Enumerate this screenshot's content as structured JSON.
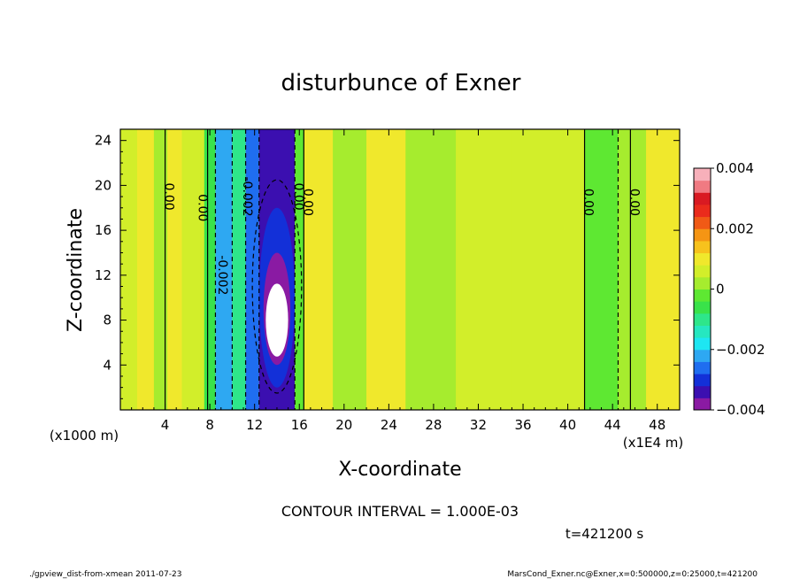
{
  "chart_data": {
    "type": "heatmap",
    "title": "disturbunce of Exner",
    "xlabel": "X-coordinate",
    "ylabel": "Z-coordinate",
    "x_unit_left": "(x1000 m)",
    "x_unit_right": "(x1E4 m)",
    "xlim": [
      0,
      50
    ],
    "ylim": [
      0,
      25
    ],
    "x_ticks": [
      4,
      8,
      12,
      16,
      20,
      24,
      28,
      32,
      36,
      40,
      44,
      48
    ],
    "x_tick_labels": [
      "4",
      "8",
      "12",
      "16",
      "20",
      "24",
      "28",
      "32",
      "36",
      "40",
      "44",
      "48"
    ],
    "y_ticks": [
      4,
      8,
      12,
      16,
      20,
      24
    ],
    "y_tick_labels": [
      "4",
      "8",
      "12",
      "16",
      "20",
      "24"
    ],
    "colorbar": {
      "min": -0.004,
      "max": 0.004,
      "labels": [
        "0.004",
        "0.002",
        "0",
        "−0.002",
        "−0.004"
      ],
      "label_values": [
        0.004,
        0.002,
        0,
        -0.002,
        -0.004
      ],
      "colors": [
        "#8a1aa3",
        "#3b0fb0",
        "#1330d8",
        "#1f6ef0",
        "#2ea8f2",
        "#1ee6f2",
        "#26e7c0",
        "#2ee68a",
        "#39e24a",
        "#5ee832",
        "#a6ec2e",
        "#d2ee2a",
        "#f0e82c",
        "#f7c21d",
        "#f59514",
        "#f05a16",
        "#ea2b1c",
        "#d91a22",
        "#f07a82",
        "#f7b0ba"
      ]
    },
    "series": [
      {
        "x0": 0,
        "x1": 1.5,
        "value": 0.0004
      },
      {
        "x0": 1.5,
        "x1": 3,
        "value": 0.0011
      },
      {
        "x0": 3,
        "x1": 4.2,
        "value": 0.0003
      },
      {
        "x0": 4.2,
        "x1": 5.5,
        "value": 0.0012
      },
      {
        "x0": 5.5,
        "x1": 7.5,
        "value": 0.0005
      },
      {
        "x0": 7.5,
        "x1": 8.5,
        "value": -0.0008
      },
      {
        "x0": 8.5,
        "x1": 10,
        "value": -0.0021
      },
      {
        "x0": 10,
        "x1": 11.2,
        "value": -0.0012
      },
      {
        "x0": 11.2,
        "x1": 12.4,
        "value": -0.0027
      },
      {
        "x0": 12.4,
        "x1": 15.6,
        "value": -0.0036
      },
      {
        "x0": 15.6,
        "x1": 16.4,
        "value": -0.0003
      },
      {
        "x0": 16.4,
        "x1": 19,
        "value": 0.0008
      },
      {
        "x0": 19,
        "x1": 22,
        "value": 0.0002
      },
      {
        "x0": 22,
        "x1": 25.5,
        "value": 0.0009
      },
      {
        "x0": 25.5,
        "x1": 30,
        "value": 0.0001
      },
      {
        "x0": 30,
        "x1": 35,
        "value": 0.0004
      },
      {
        "x0": 35,
        "x1": 41.5,
        "value": 0.0007
      },
      {
        "x0": 41.5,
        "x1": 44.5,
        "value": -0.0004
      },
      {
        "x0": 44.5,
        "x1": 47,
        "value": 0.0003
      },
      {
        "x0": 47,
        "x1": 50,
        "value": 0.001
      }
    ],
    "contour_interval_text": "CONTOUR INTERVAL = 1.000E-03",
    "contour_labels": [
      {
        "text": "0.00",
        "x": 4.0,
        "y": 19
      },
      {
        "text": "0.00",
        "x": 7.0,
        "y": 18
      },
      {
        "text": "-0.002",
        "x": 11.0,
        "y": 19
      },
      {
        "text": "-0.002",
        "x": 8.8,
        "y": 12
      },
      {
        "text": "0.00",
        "x": 15.6,
        "y": 19
      },
      {
        "text": "0.00",
        "x": 16.4,
        "y": 18.5
      },
      {
        "text": "0.00",
        "x": 41.5,
        "y": 18.5
      },
      {
        "text": "0.00",
        "x": 45.6,
        "y": 18.5
      }
    ]
  },
  "annotations": {
    "time": "t=421200 s",
    "footer_left": "./gpview_dist-from-xmean  2011-07-23",
    "footer_right": "MarsCond_Exner.nc@Exner,x=0:500000,z=0:25000,t=421200"
  }
}
